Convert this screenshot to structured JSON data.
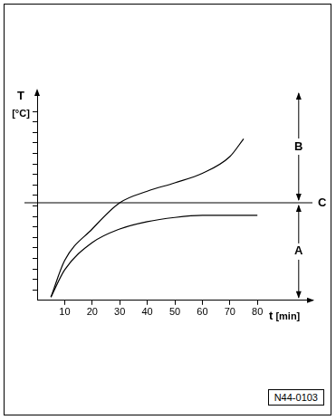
{
  "chart_data": {
    "type": "line",
    "xlabel": "t [min]",
    "ylabel": "T [°C]",
    "xlim": [
      0,
      100
    ],
    "xticks": [
      10,
      20,
      30,
      40,
      50,
      60,
      70,
      80
    ],
    "ylim": [
      0,
      20
    ],
    "yticks": [
      1,
      2,
      3,
      4,
      5,
      6,
      7,
      8,
      9,
      10,
      11,
      12,
      13,
      14,
      15,
      16,
      17,
      18
    ],
    "tick_labels": "x",
    "grid": false,
    "series": [
      {
        "color": "#000000",
        "line_style": "solid",
        "x": [
          5,
          10,
          20,
          30,
          40,
          50,
          60,
          70,
          75
        ],
        "values": [
          0.3,
          3.8,
          6.8,
          9.3,
          10.4,
          11.2,
          12.1,
          13.7,
          15.4
        ]
      },
      {
        "color": "#000000",
        "line_style": "solid",
        "x": [
          5,
          10,
          20,
          30,
          40,
          50,
          60,
          70,
          80
        ],
        "values": [
          0.3,
          2.9,
          5.5,
          6.8,
          7.5,
          7.9,
          8.1,
          8.1,
          8.1
        ]
      }
    ],
    "annotations": [
      {
        "type": "hline",
        "y": 9.3,
        "label": "C"
      },
      {
        "type": "arrow",
        "x": 95,
        "from": 0,
        "to": 9.3,
        "label": "A"
      },
      {
        "type": "arrow",
        "x": 95,
        "from": 9.3,
        "to": 20,
        "label": "B"
      }
    ],
    "footnote": "N44-0103"
  }
}
